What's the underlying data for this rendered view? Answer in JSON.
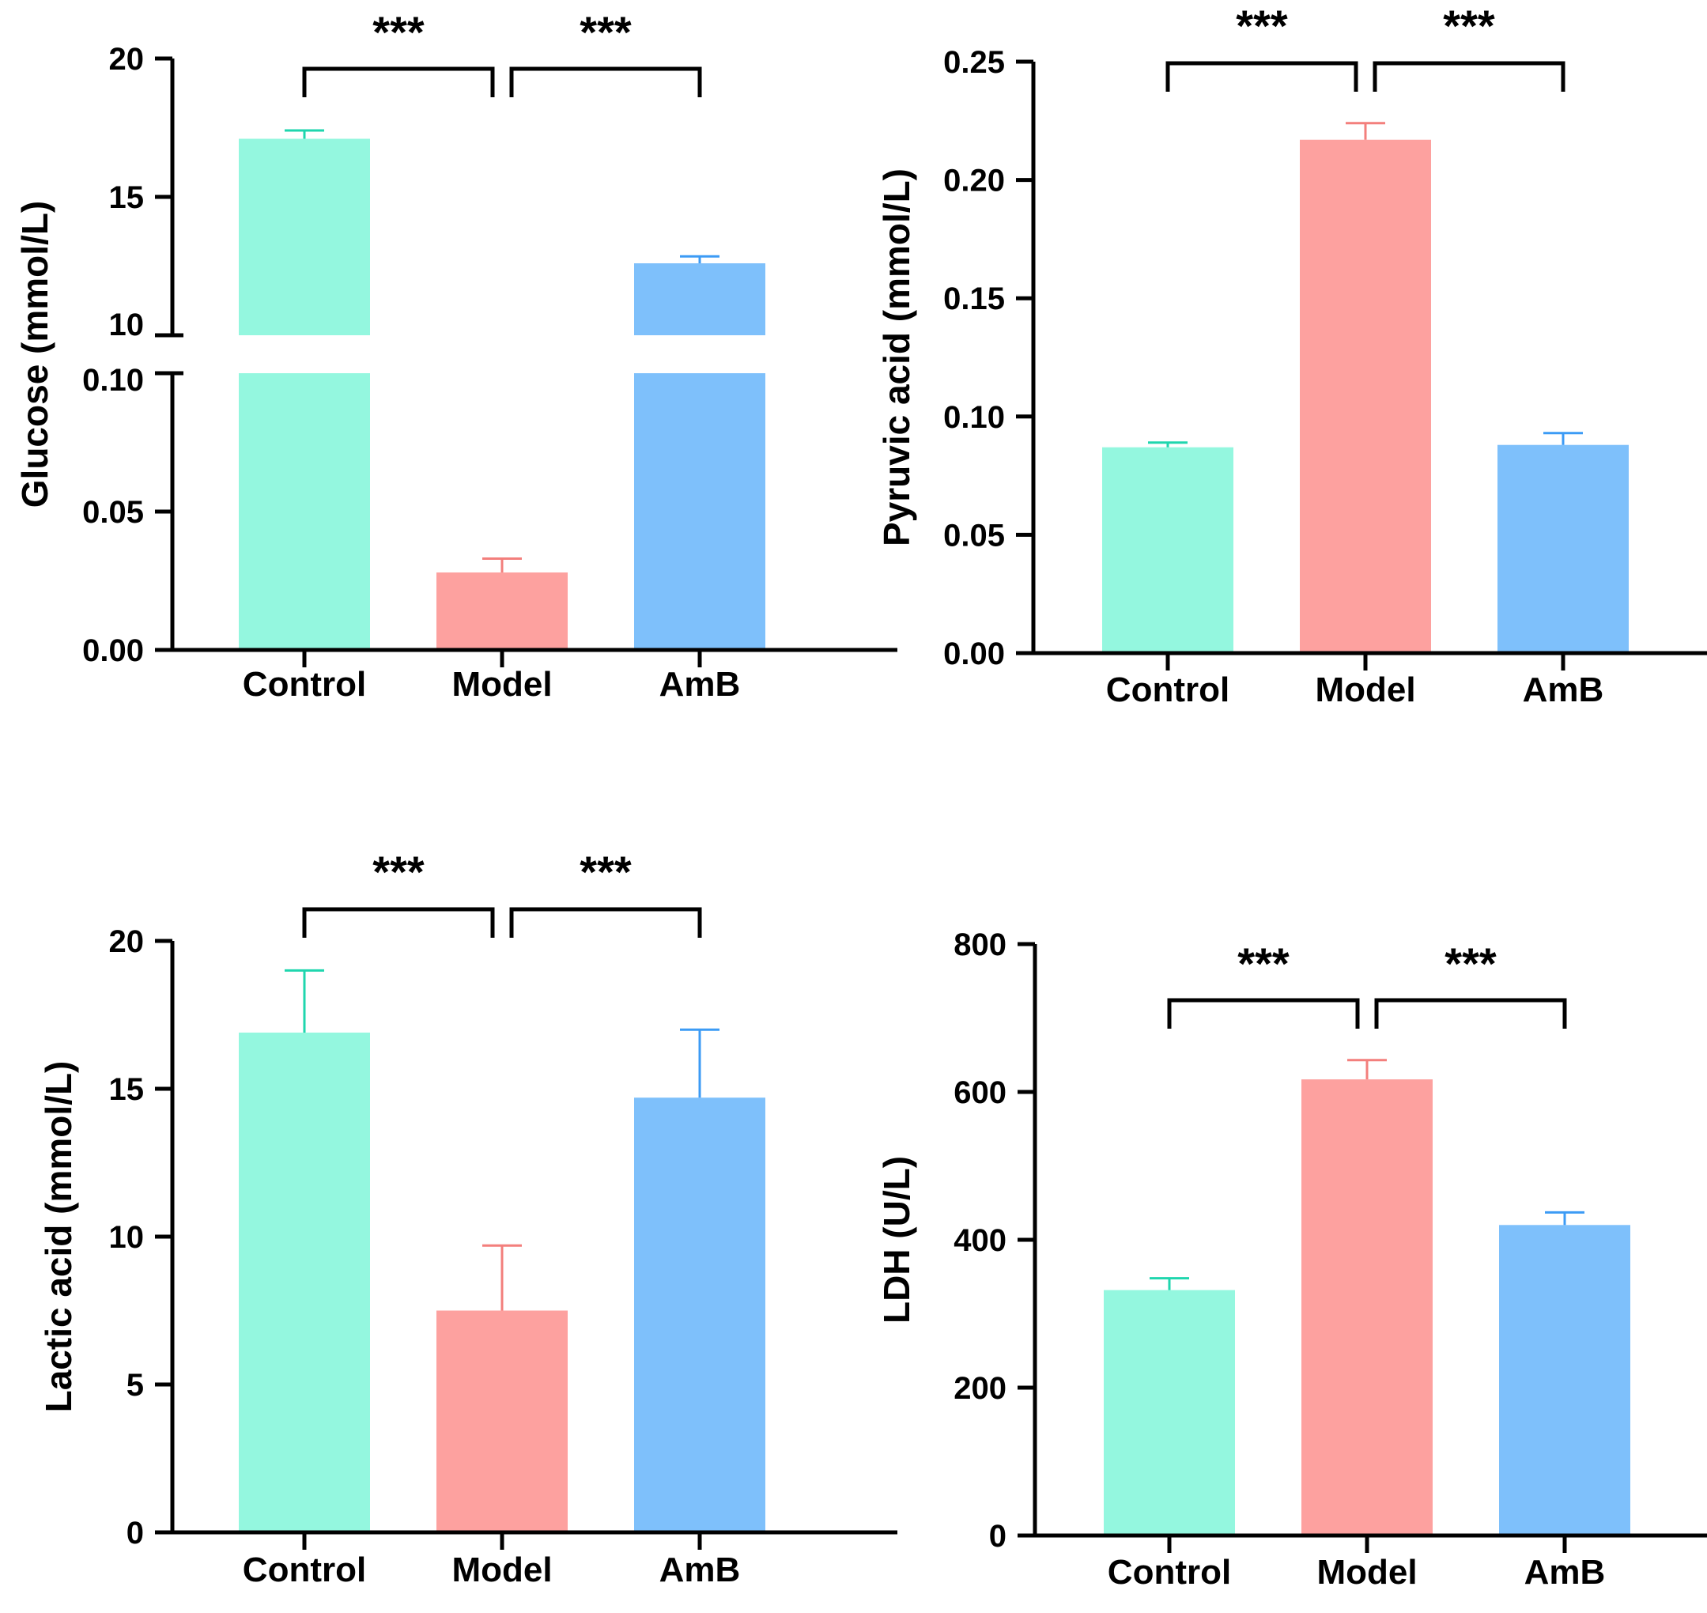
{
  "colors": {
    "control": "#94f7df",
    "control_error": "#1fd6ae",
    "model": "#fda19f",
    "model_error": "#f37f7c",
    "amb": "#7ec0fb",
    "amb_error": "#3c9bf5",
    "axis": "#000000"
  },
  "chart_data": [
    {
      "type": "bar",
      "categories": [
        "Control",
        "Model",
        "AmB"
      ],
      "values": [
        17.1,
        0.028,
        12.6
      ],
      "errors": [
        0.3,
        0.005,
        0.25
      ],
      "ylabel": "Glucose (mmol/L)",
      "axis_break": true,
      "lower_ylim": [
        0,
        0.1
      ],
      "lower_ticks": [
        "0.00",
        "0.05",
        "0.10"
      ],
      "upper_ylim": [
        10,
        20
      ],
      "upper_ticks": [
        "10",
        "15",
        "20"
      ],
      "significance": [
        {
          "from": 0,
          "to": 1,
          "label": "***"
        },
        {
          "from": 1,
          "to": 2,
          "label": "***"
        }
      ]
    },
    {
      "type": "bar",
      "categories": [
        "Control",
        "Model",
        "AmB"
      ],
      "values": [
        0.087,
        0.217,
        0.088
      ],
      "errors": [
        0.002,
        0.007,
        0.005
      ],
      "ylabel": "Pyruvic acid (mmol/L)",
      "ylim": [
        0,
        0.25
      ],
      "ticks": [
        "0.00",
        "0.05",
        "0.10",
        "0.15",
        "0.20",
        "0.25"
      ],
      "significance": [
        {
          "from": 0,
          "to": 1,
          "label": "***"
        },
        {
          "from": 1,
          "to": 2,
          "label": "***"
        }
      ]
    },
    {
      "type": "bar",
      "categories": [
        "Control",
        "Model",
        "AmB"
      ],
      "values": [
        16.9,
        7.5,
        14.7
      ],
      "errors": [
        2.1,
        2.2,
        2.3
      ],
      "ylabel": "Lactic acid (mmol/L)",
      "ylim": [
        0,
        20
      ],
      "ticks": [
        "0",
        "5",
        "10",
        "15",
        "20"
      ],
      "significance": [
        {
          "from": 0,
          "to": 1,
          "label": "***"
        },
        {
          "from": 1,
          "to": 2,
          "label": "***"
        }
      ]
    },
    {
      "type": "bar",
      "categories": [
        "Control",
        "Model",
        "AmB"
      ],
      "values": [
        332,
        617,
        420
      ],
      "errors": [
        16,
        26,
        17
      ],
      "ylabel": "LDH (U/L)",
      "ylim": [
        0,
        800
      ],
      "ticks": [
        "0",
        "200",
        "400",
        "600",
        "800"
      ],
      "significance": [
        {
          "from": 0,
          "to": 1,
          "label": "***"
        },
        {
          "from": 1,
          "to": 2,
          "label": "***"
        }
      ]
    }
  ]
}
